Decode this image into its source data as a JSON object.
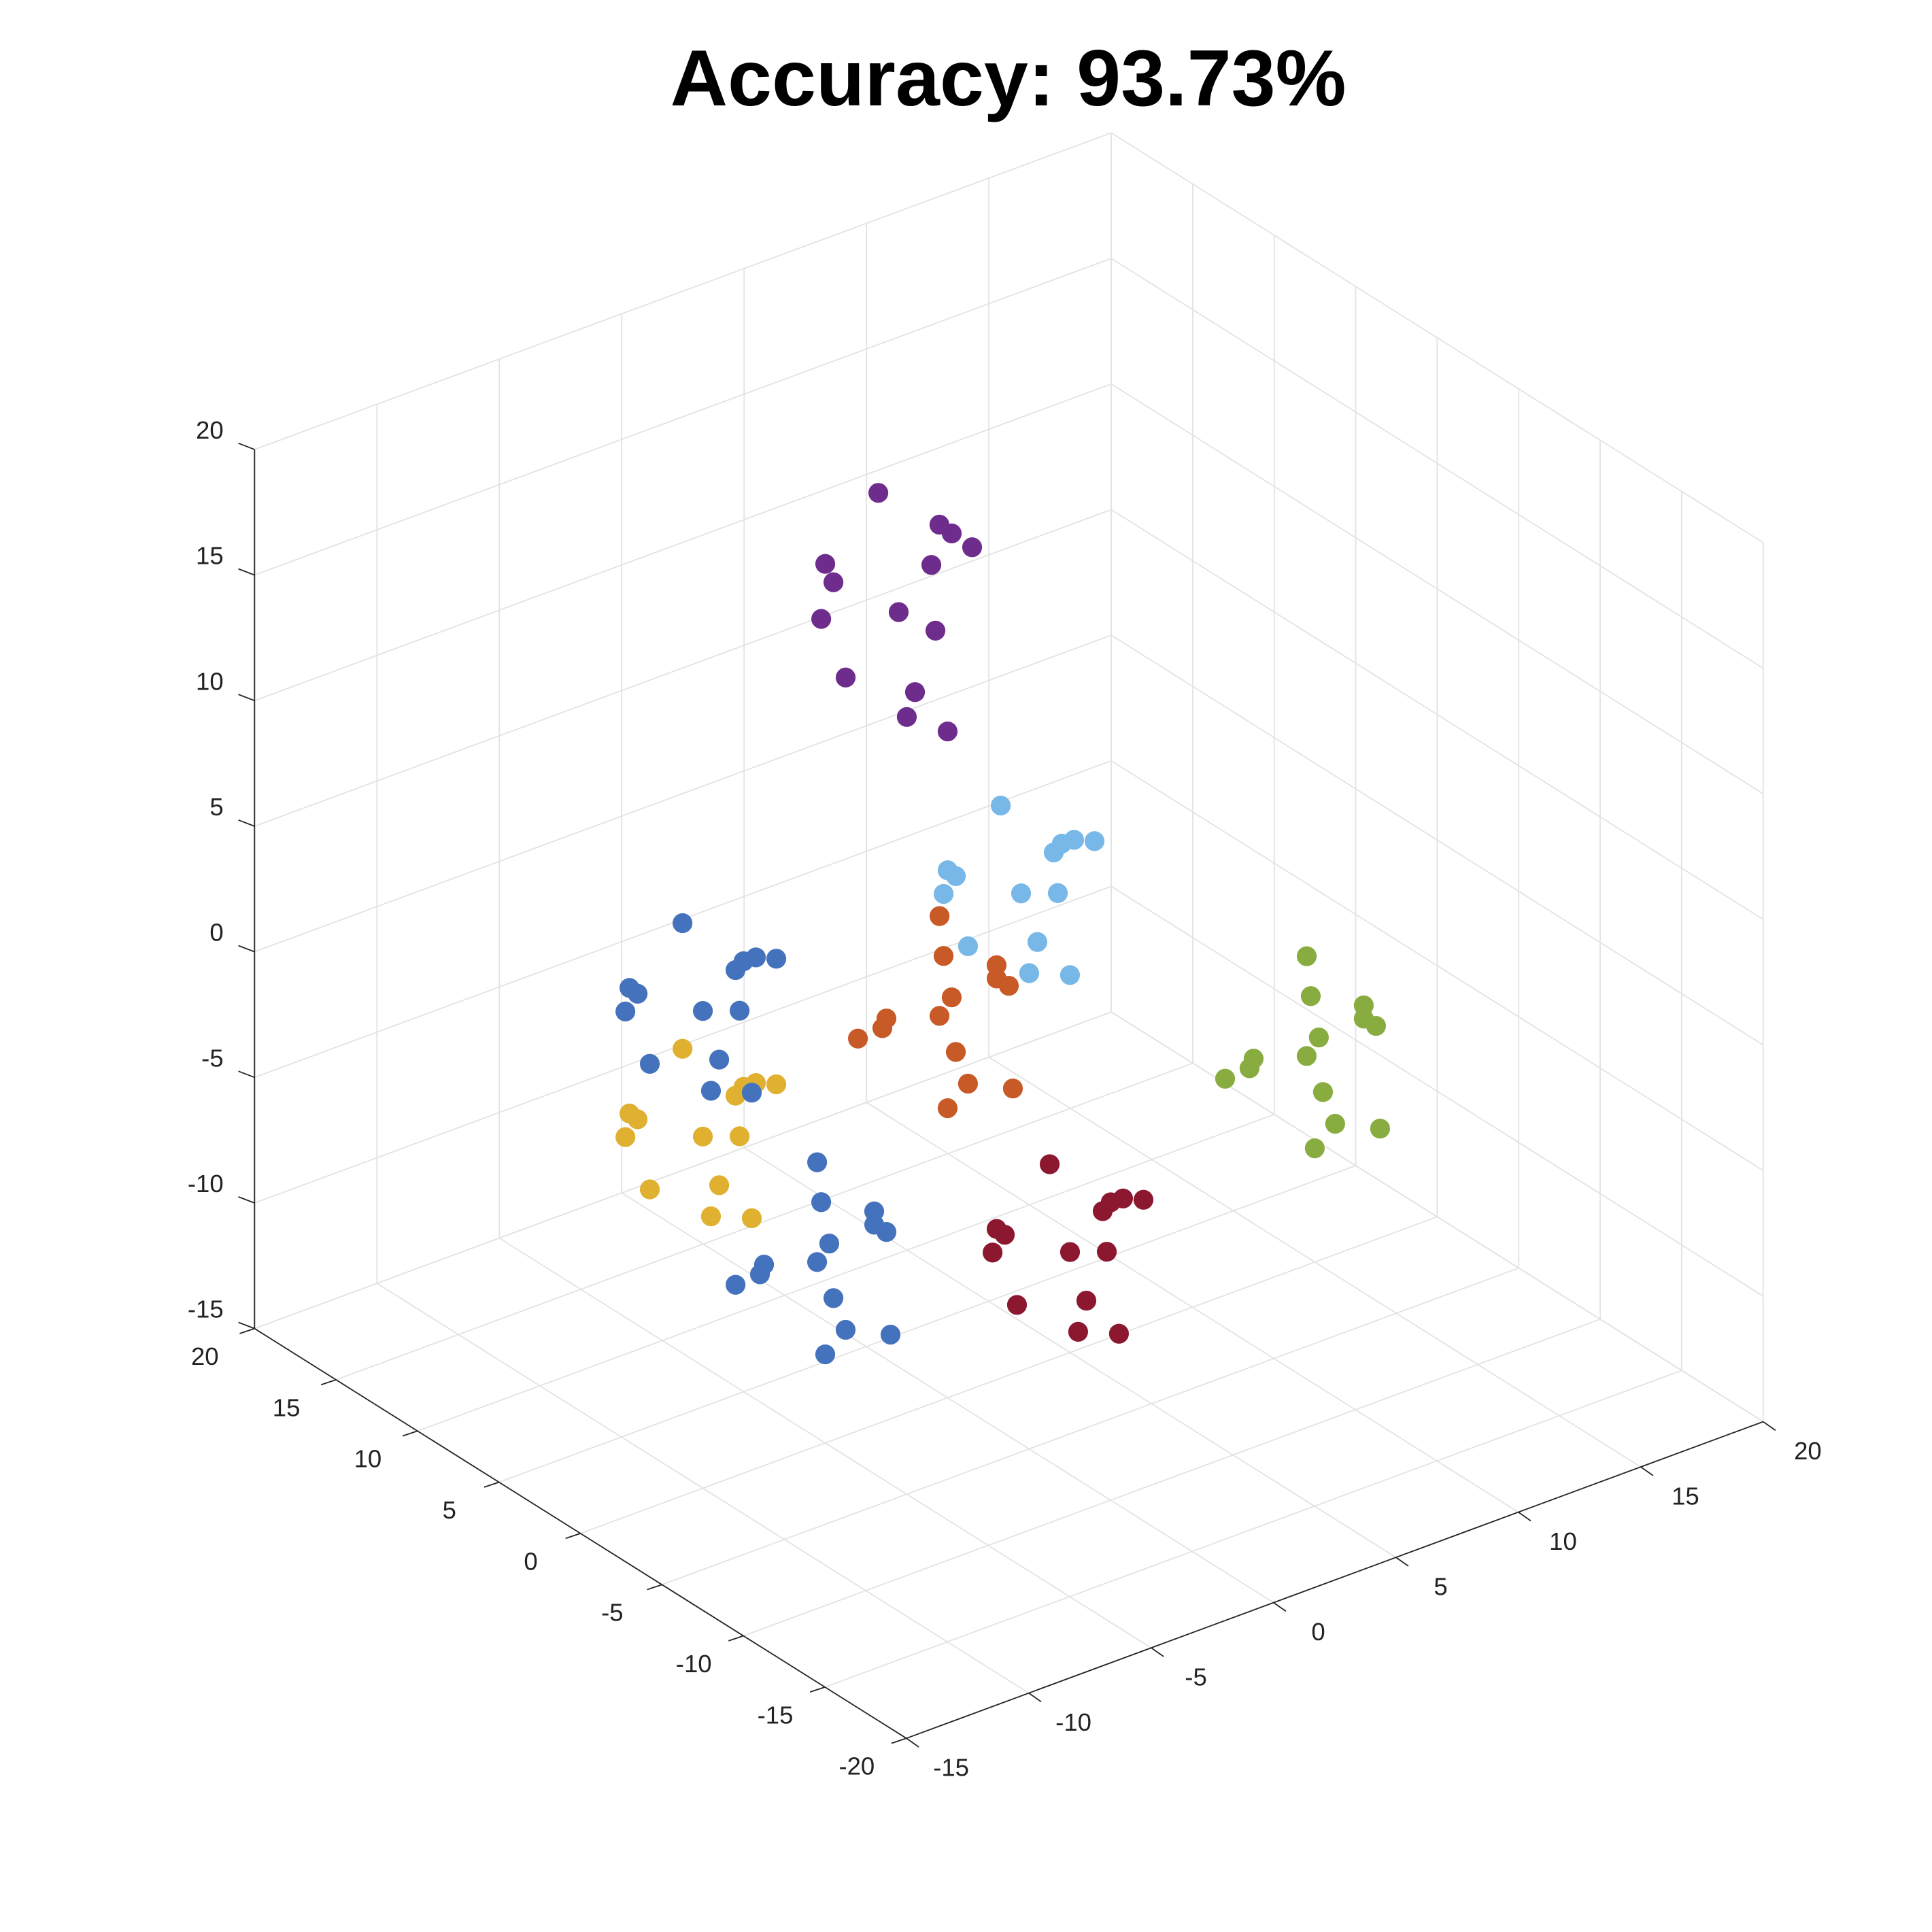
{
  "chart_data": {
    "type": "scatter3d",
    "title": "Accuracy: 93.73%",
    "grid": true,
    "xlim": [
      -15,
      20
    ],
    "ylim": [
      -20,
      20
    ],
    "zlim": [
      -15,
      20
    ],
    "xticks": [
      -15,
      -10,
      -5,
      0,
      5,
      10,
      15,
      20
    ],
    "yticks": [
      -20,
      -15,
      -10,
      -5,
      0,
      5,
      10,
      15,
      20
    ],
    "zticks": [
      -15,
      -10,
      -5,
      0,
      5,
      10,
      15,
      20
    ],
    "series": [
      {
        "color": "#e0b030",
        "x": [
          -10,
          -8.5,
          -12,
          -7.5,
          -11,
          -9.5,
          -12.5,
          -9,
          -7,
          -11.5,
          -10,
          -8,
          -13,
          -9
        ],
        "y": [
          0,
          -1,
          1,
          1.5,
          -2,
          2,
          -0.5,
          -1.5,
          0,
          2.5,
          -2.5,
          1,
          0,
          0.5
        ],
        "z": [
          -1,
          1,
          0,
          -2.5,
          -3,
          1.5,
          -2,
          -4,
          0,
          -1.5,
          2,
          -0.5,
          1,
          -3.5
        ]
      },
      {
        "color": "#c85a28",
        "x": [
          0,
          2,
          1,
          -1.5,
          -2,
          2.5,
          -1,
          -3,
          1,
          -0.5,
          3,
          0.5,
          2,
          -2.5
        ],
        "y": [
          0.5,
          0,
          1,
          -2.5,
          2.5,
          0,
          -1.5,
          -0.5,
          2,
          -2,
          1.5,
          1,
          -1,
          0
        ],
        "z": [
          0,
          1.5,
          -2,
          2.5,
          -1,
          0.5,
          -2.5,
          1,
          3,
          -1.5,
          0,
          2,
          -3,
          1
        ]
      },
      {
        "color": "#6e2c8c",
        "x": [
          -2,
          -0.5,
          -4,
          0.5,
          -3,
          -1.5,
          -4.5,
          -1,
          1,
          -3.5,
          -2,
          0,
          -5,
          -1
        ],
        "y": [
          0,
          -1,
          1,
          1.5,
          -2,
          2,
          -0.5,
          -1.5,
          0,
          2.5,
          -2.5,
          1,
          0,
          0.5
        ],
        "z": [
          17,
          20,
          18.5,
          14.75,
          14,
          20.75,
          15.5,
          12.5,
          18.5,
          16.25,
          21.5,
          17.75,
          20,
          13.25
        ]
      },
      {
        "color": "#4472bc",
        "x": [
          -10,
          -8.5,
          -12,
          -7.5,
          -11,
          -9.5,
          -12.5,
          -9,
          -7,
          -11.5,
          -10,
          -8,
          -13,
          -9,
          -5,
          -3,
          -4,
          -6.5,
          -7,
          -2.5,
          -6,
          -8,
          -4,
          -5.5,
          -2,
          -4.5,
          -3,
          -7.5
        ],
        "y": [
          0,
          -1,
          1,
          1.5,
          -2,
          2,
          -0.5,
          -1.5,
          0,
          2.5,
          -2.5,
          1,
          0,
          0.5,
          0.5,
          0,
          1,
          -2.5,
          2.5,
          0,
          -1.5,
          -0.5,
          2,
          -2,
          1.5,
          1,
          -1,
          0
        ],
        "z": [
          4,
          6,
          5,
          2.5,
          2,
          6.5,
          3,
          1,
          5,
          3.5,
          7,
          4.5,
          6,
          1.5,
          -8,
          -6.5,
          -10,
          -5.5,
          -9,
          -7.5,
          -10.5,
          -7,
          -5,
          -9.5,
          -8,
          -6,
          -11,
          -7
        ]
      },
      {
        "color": "#78b8e8",
        "x": [
          3,
          4.5,
          1,
          5.5,
          2,
          3.5,
          0.5,
          4,
          6,
          1.5,
          3,
          5,
          0,
          4
        ],
        "y": [
          0,
          -1,
          1,
          1.5,
          -2,
          2,
          -0.5,
          -1.5,
          0,
          2.5,
          -2.5,
          1,
          0,
          0.5
        ],
        "z": [
          4,
          6,
          5,
          2.5,
          2,
          6.5,
          3,
          1,
          5,
          3.5,
          7,
          4.5,
          6,
          1.5
        ]
      },
      {
        "color": "#88ac40",
        "x": [
          15,
          17,
          16,
          13.5,
          13,
          17.5,
          14,
          12,
          16,
          14.5,
          18,
          15.5,
          17,
          12.5
        ],
        "y": [
          0.5,
          0,
          1,
          -2.5,
          2.5,
          0,
          -1.5,
          -0.5,
          2,
          -2,
          1.5,
          1,
          -1,
          0
        ],
        "z": [
          -7,
          -5.5,
          -9,
          -4.5,
          -8,
          -6.5,
          -9.5,
          -6,
          -4,
          -8.5,
          -7,
          -5,
          -10,
          -6
        ]
      },
      {
        "color": "#8c1830",
        "x": [
          5,
          6.5,
          3,
          7.5,
          4,
          5.5,
          2.5,
          6,
          8,
          3.5,
          5,
          7,
          2,
          6
        ],
        "y": [
          0,
          -1,
          1,
          1.5,
          -2,
          2,
          -0.5,
          -1.5,
          0,
          2.5,
          -2.5,
          1,
          0,
          0.5
        ],
        "z": [
          -11,
          -9,
          -10,
          -12.5,
          -13,
          -8.5,
          -12,
          -14,
          -10,
          -11.5,
          -8,
          -10.5,
          -9,
          -13.5
        ]
      }
    ]
  }
}
